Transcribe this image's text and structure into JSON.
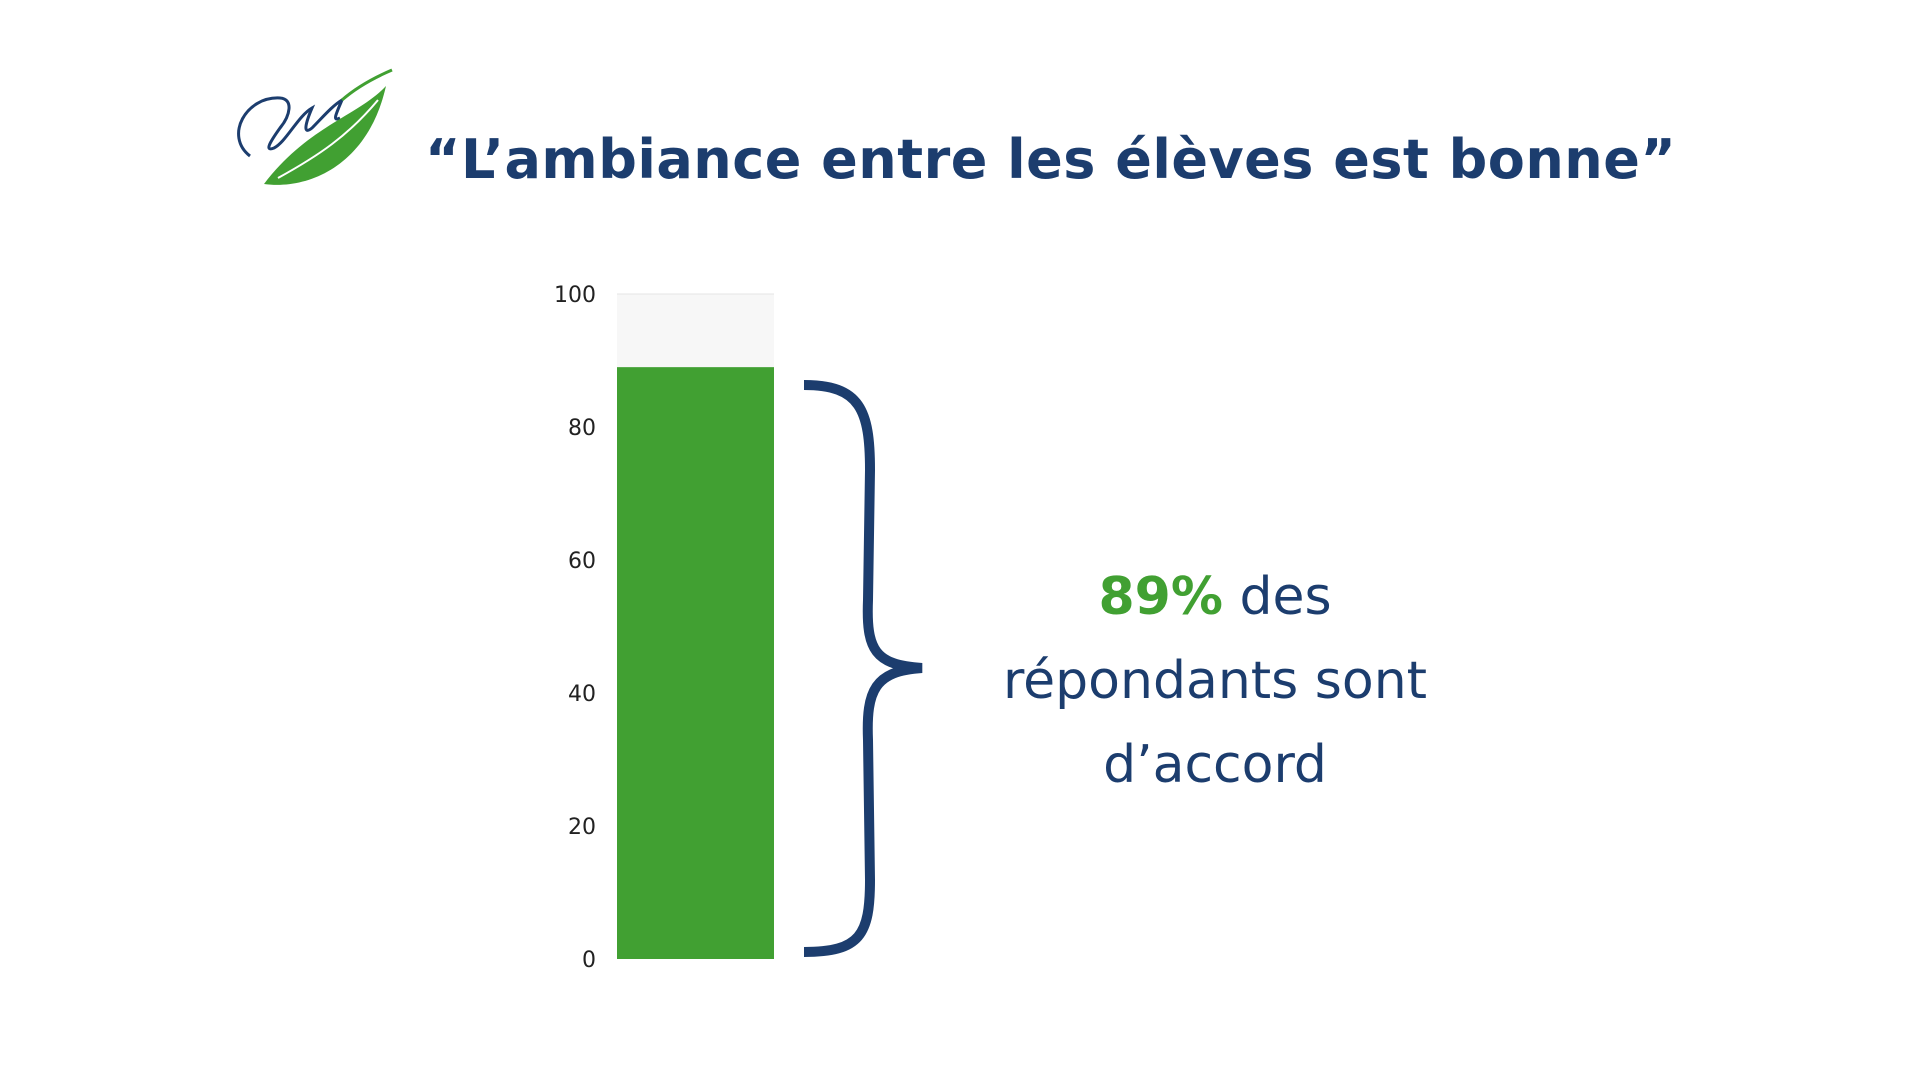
{
  "title": "“L’ambiance entre les élèves est bonne”",
  "colors": {
    "brand_blue": "#1c3d6e",
    "bar_green": "#41a032",
    "track": "#f5f5f5"
  },
  "chart_data": {
    "type": "bar",
    "categories": [
      ""
    ],
    "values": [
      89
    ],
    "ylim": [
      0,
      100
    ],
    "yticks": [
      0,
      20,
      40,
      60,
      80,
      100
    ],
    "grid": false,
    "annotation": {
      "percent": "89%",
      "line1_rest": " des",
      "line2": "répondants sont",
      "line3": "d’accord"
    }
  }
}
